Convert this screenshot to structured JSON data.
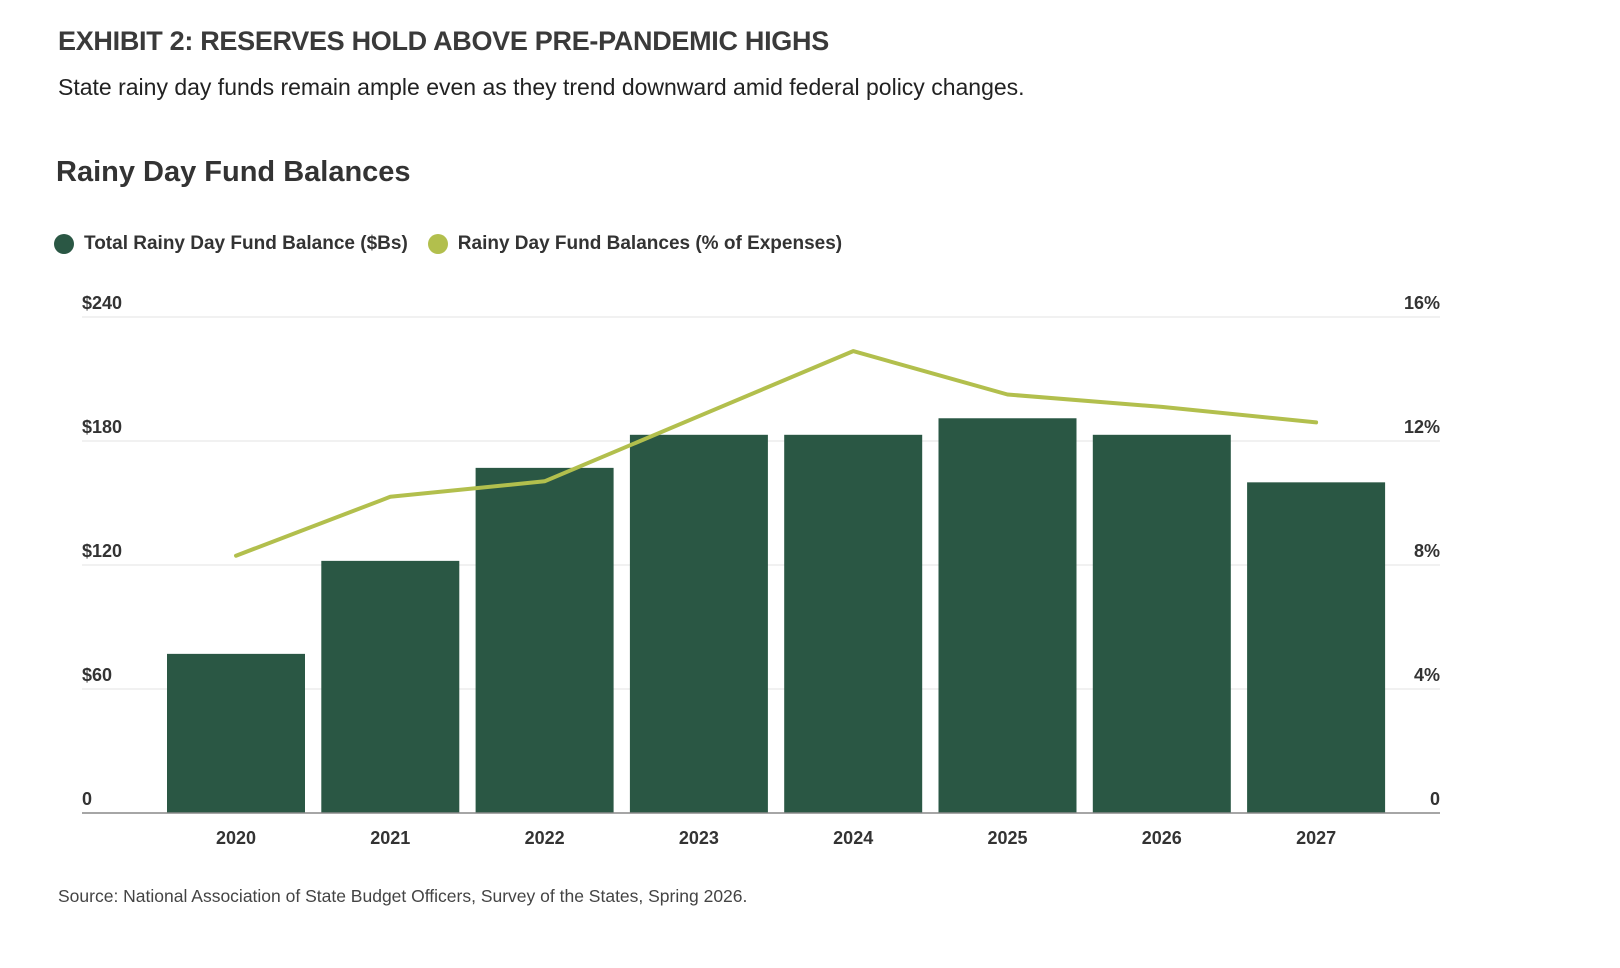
{
  "header": {
    "exhibit": "EXHIBIT 2: RESERVES HOLD ABOVE PRE-PANDEMIC HIGHS",
    "subtitle": "State rainy day funds remain ample even as they trend downward amid federal policy changes."
  },
  "chart_data": {
    "type": "bar",
    "title": "Rainy Day Fund Balances",
    "categories": [
      "2020",
      "2021",
      "2022",
      "2023",
      "2024",
      "2025",
      "2026",
      "2027"
    ],
    "series": [
      {
        "name": "Total Rainy Day Fund Balance ($Bs)",
        "type": "bar",
        "axis": "left",
        "color": "#2a5744",
        "values": [
          77,
          122,
          167,
          183,
          183,
          191,
          183,
          160
        ]
      },
      {
        "name": "Rainy Day Fund Balances (% of Expenses)",
        "type": "line",
        "axis": "right",
        "color": "#b2bf4d",
        "values": [
          8.3,
          10.2,
          10.7,
          12.8,
          14.9,
          13.5,
          13.1,
          12.6
        ]
      }
    ],
    "left_axis": {
      "ylim": [
        0,
        240
      ],
      "ticks": [
        0,
        60,
        120,
        180,
        240
      ],
      "tick_labels": [
        "0",
        "$60",
        "$120",
        "$180",
        "$240"
      ]
    },
    "right_axis": {
      "ylim": [
        0,
        16
      ],
      "ticks": [
        0,
        4,
        8,
        12,
        16
      ],
      "tick_labels": [
        "0",
        "4%",
        "8%",
        "12%",
        "16%"
      ]
    },
    "grid": true,
    "legend_position": "top-left"
  },
  "source": "Source: National Association of State Budget Officers, Survey of the States, Spring 2026."
}
